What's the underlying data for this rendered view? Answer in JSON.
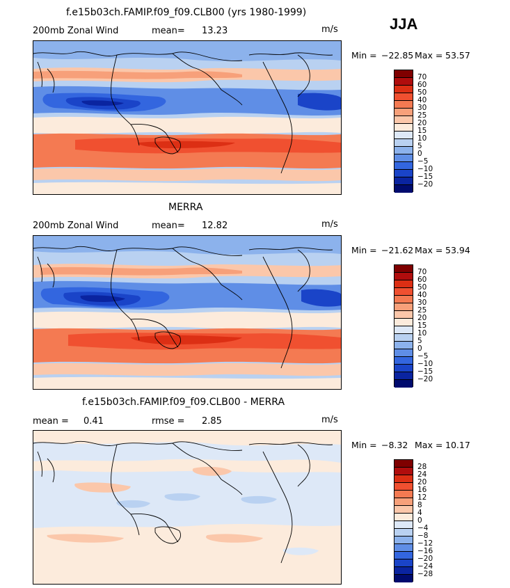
{
  "season": "JJA",
  "palette": {
    "abs": [
      "#7f0000",
      "#b00d0d",
      "#dc2f14",
      "#f05030",
      "#f47a52",
      "#f7a07a",
      "#fbc7aa",
      "#fcebdc",
      "#dde8f7",
      "#b9d1f1",
      "#8cb2ec",
      "#5f8ee6",
      "#3366df",
      "#1a44c8",
      "#0a24a0",
      "#000b6e"
    ],
    "diff": [
      "#7f0000",
      "#b00d0d",
      "#dc2f14",
      "#f05030",
      "#f47a52",
      "#f7a07a",
      "#fbc7aa",
      "#fcebdc",
      "#dde8f7",
      "#b9d1f1",
      "#8cb2ec",
      "#5f8ee6",
      "#3366df",
      "#1a44c8",
      "#0a24a0",
      "#000b6e"
    ]
  },
  "panels": [
    {
      "title": "f.e15b03ch.FAMIP.f09_f09.CLB00 (yrs 1980-1999)",
      "left_label": "200mb  Zonal  Wind",
      "stat_label": "mean=",
      "stat_value": "13.23",
      "units": "m/s",
      "min_label": "Min = ",
      "min_value": "−22.85",
      "max_label": "Max = ",
      "max_value": "53.57",
      "levels": [
        "70",
        "60",
        "50",
        "40",
        "30",
        "25",
        "20",
        "15",
        "10",
        "5",
        "0",
        "−5",
        "−10",
        "−15",
        "−20"
      ],
      "palette": "abs"
    },
    {
      "title": "MERRA",
      "left_label": "200mb  Zonal  Wind",
      "stat_label": "mean=",
      "stat_value": "12.82",
      "units": "m/s",
      "min_label": "Min = ",
      "min_value": "−21.62",
      "max_label": "Max = ",
      "max_value": "53.94",
      "levels": [
        "70",
        "60",
        "50",
        "40",
        "30",
        "25",
        "20",
        "15",
        "10",
        "5",
        "0",
        "−5",
        "−10",
        "−15",
        "−20"
      ],
      "palette": "abs"
    },
    {
      "title": "f.e15b03ch.FAMIP.f09_f09.CLB00 - MERRA",
      "left_label": "mean =",
      "left_value": "0.41",
      "stat_label": "rmse =",
      "stat_value": "2.85",
      "units": "m/s",
      "min_label": "Min = ",
      "min_value": "−8.32",
      "max_label": "Max = ",
      "max_value": "10.17",
      "levels": [
        "28",
        "24",
        "20",
        "16",
        "12",
        "8",
        "4",
        "0",
        "−4",
        "−8",
        "−12",
        "−16",
        "−20",
        "−24",
        "−28"
      ],
      "palette": "diff"
    }
  ]
}
